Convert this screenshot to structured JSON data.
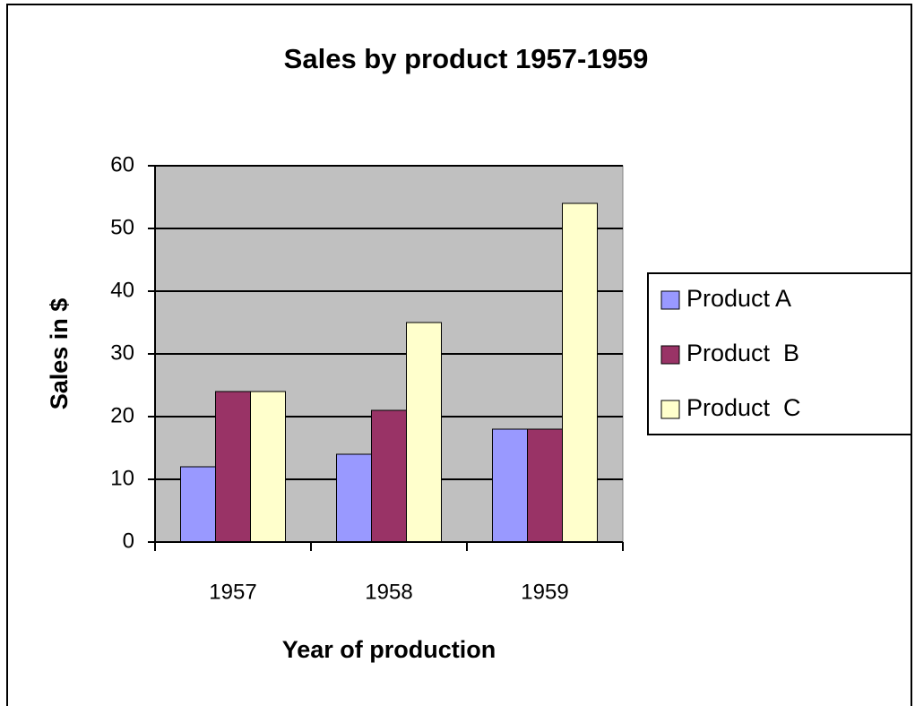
{
  "chart_data": {
    "type": "bar",
    "title": "Sales by product 1957-1959",
    "x_label": "Year of production",
    "y_label": "Sales in $",
    "categories": [
      "1957",
      "1958",
      "1959"
    ],
    "series": [
      {
        "name": "Product A",
        "color": "#9999ff",
        "values": [
          12,
          14,
          18
        ]
      },
      {
        "name": "Product  B",
        "color": "#993366",
        "values": [
          24,
          21,
          18
        ]
      },
      {
        "name": "Product  C",
        "color": "#ffffcc",
        "values": [
          24,
          35,
          54
        ]
      }
    ],
    "ylim": [
      0,
      60
    ],
    "yticks": [
      0,
      10,
      20,
      30,
      40,
      50,
      60
    ],
    "grid": true,
    "legend": "right"
  }
}
